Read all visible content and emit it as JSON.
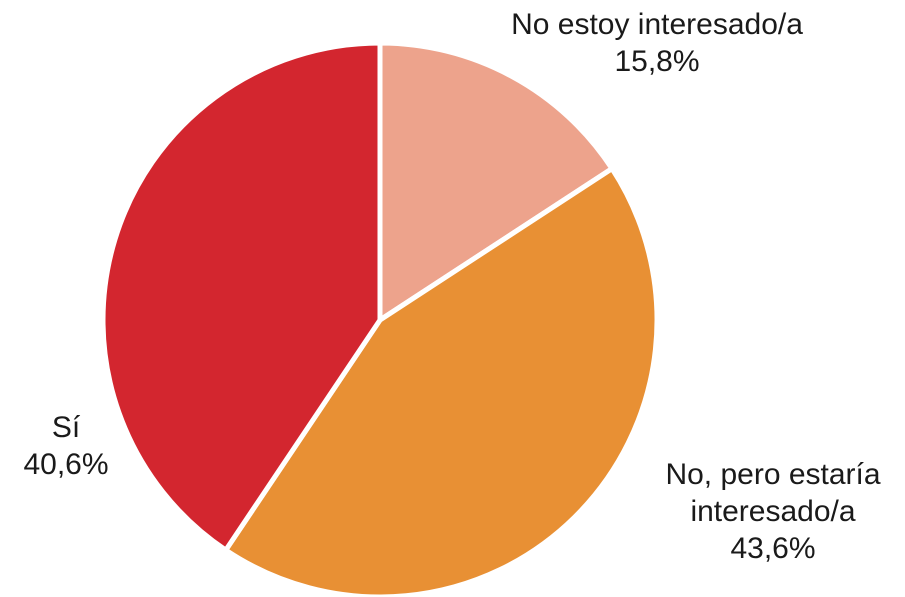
{
  "chart_data": {
    "type": "pie",
    "title": "",
    "slices": [
      {
        "label_lines": [
          "No estoy interesado/a"
        ],
        "value": 15.8,
        "value_label": "15,8%",
        "color": "#eda38c"
      },
      {
        "label_lines": [
          "No, pero estaría",
          "interesado/a"
        ],
        "value": 43.6,
        "value_label": "43,6%",
        "color": "#e89034"
      },
      {
        "label_lines": [
          "Sí"
        ],
        "value": 40.6,
        "value_label": "40,6%",
        "color": "#d3262f"
      }
    ],
    "start_angle": "12 o'clock",
    "direction": "clockwise",
    "legend": "none",
    "labels": "outside"
  }
}
